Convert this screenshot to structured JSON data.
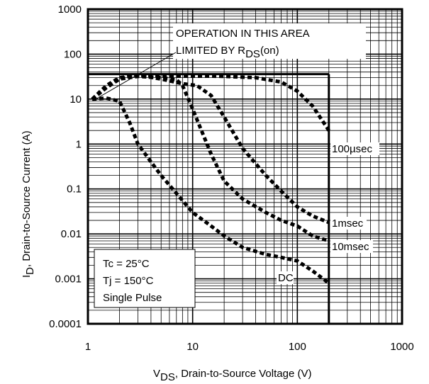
{
  "chart_data": {
    "type": "line",
    "x_scale": "log",
    "y_scale": "log",
    "xlim": [
      1,
      1000
    ],
    "ylim": [
      0.0001,
      1000
    ],
    "grid": true,
    "x_ticks": [
      "1",
      "10",
      "100",
      "1000"
    ],
    "y_ticks": [
      "1000",
      "100",
      "10",
      "1",
      "0.1",
      "0.01",
      "0.001",
      "0.0001"
    ],
    "xlabel": {
      "main": "V",
      "sub": "DS",
      "rest": ", Drain-to-Source Voltage (V)"
    },
    "ylabel": {
      "main": "I",
      "sub": "D",
      "rest": ",  Drain-to-Source Current (A)"
    },
    "annotation": {
      "line1": "OPERATION IN THIS AREA",
      "line2": "LIMITED BY R",
      "sub": "DS",
      "tail": "(on)"
    },
    "conditions": [
      "Tc = 25°C",
      "Tj = 150°C",
      "Single Pulse"
    ],
    "boundary": {
      "current_limit_A": 36,
      "voltage_limit_V": 200
    },
    "series": [
      {
        "name": "100µsec",
        "style": "dashed",
        "x": [
          1.1,
          1.5,
          2,
          3,
          5,
          10,
          20,
          40,
          70,
          100,
          140,
          200
        ],
        "y": [
          10,
          20,
          30,
          34,
          33,
          33,
          32,
          30,
          24,
          15,
          7,
          2
        ]
      },
      {
        "name": "1msec",
        "style": "dashed",
        "x": [
          1.1,
          1.5,
          2,
          3,
          5,
          8,
          11,
          15,
          20,
          30,
          50,
          70,
          100,
          140,
          200
        ],
        "y": [
          10,
          18,
          28,
          34,
          28,
          22,
          20,
          12,
          4,
          0.8,
          0.2,
          0.09,
          0.04,
          0.025,
          0.018
        ]
      },
      {
        "name": "10msec",
        "style": "dashed",
        "x": [
          1.1,
          1.5,
          2,
          3,
          5,
          7,
          8,
          10,
          15,
          20,
          30,
          50,
          70,
          100,
          140,
          200
        ],
        "y": [
          10,
          18,
          28,
          32,
          30,
          27,
          20,
          6,
          0.6,
          0.15,
          0.06,
          0.03,
          0.02,
          0.015,
          0.009,
          0.007
        ]
      },
      {
        "name": "DC",
        "style": "dashed",
        "x": [
          1.1,
          1.5,
          2,
          2.5,
          3,
          4,
          5,
          7,
          10,
          15,
          20,
          30,
          50,
          70,
          100,
          140,
          200
        ],
        "y": [
          10,
          10.5,
          9,
          3,
          1,
          0.4,
          0.2,
          0.08,
          0.03,
          0.015,
          0.009,
          0.005,
          0.0035,
          0.003,
          0.0025,
          0.0015,
          0.0008
        ]
      }
    ]
  }
}
